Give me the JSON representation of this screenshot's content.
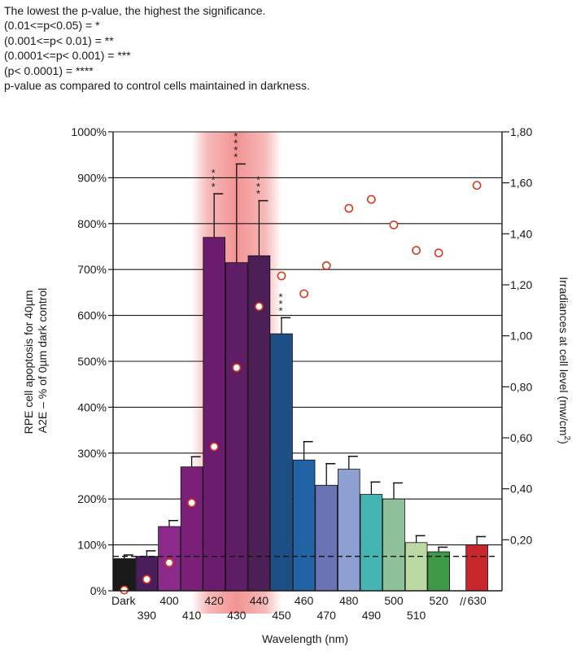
{
  "notes": [
    "The lowest the p-value, the highest the significance.",
    "(0.01<=p<0.05) = *",
    "(0.001<=p< 0.01) = **",
    "(0.0001<=p< 0.001) = ***",
    "(p< 0.0001) = ****",
    "p-value as compared to control cells maintained in darkness."
  ],
  "colors": {
    "highlight": "#f08080",
    "marker": "#d63a1e",
    "bar_edge": "#111111",
    "reference_line": "#111111"
  },
  "chart_data": {
    "type": "bar",
    "xlabel": "Wavelength (nm)",
    "ylabel_left": [
      "RPE cell apoptosis for 40µm",
      "A2E – % of 0µm dark control"
    ],
    "ylabel_right": "Irradiances at cell level (mw/cm",
    "ylabel_right_sup": "2",
    "ylabel_right_suffix": ")",
    "ylim_left": [
      0,
      1000
    ],
    "ylim_right": [
      0,
      1.8
    ],
    "yticks_left": [
      "0%",
      "100%",
      "200%",
      "300%",
      "400%",
      "500%",
      "600%",
      "700%",
      "800%",
      "900%",
      "1000%"
    ],
    "yticks_right": [
      "0,20",
      "0,40",
      "0,60",
      "0,80",
      "1,00",
      "1,20",
      "1,40",
      "1,60",
      "1,80"
    ],
    "break_marker": "//",
    "grid": "horizontal",
    "highlight_band": [
      "420",
      "440"
    ],
    "reference_line_value": 75,
    "categories": [
      "Dark",
      "390",
      "400",
      "410",
      "420",
      "430",
      "440",
      "450",
      "460",
      "470",
      "480",
      "490",
      "500",
      "510",
      "520",
      "630"
    ],
    "label_row": [
      "top",
      "bottom",
      "top",
      "bottom",
      "top",
      "bottom",
      "top",
      "bottom",
      "top",
      "bottom",
      "top",
      "bottom",
      "top",
      "bottom",
      "top",
      "top"
    ],
    "series": [
      {
        "kind": "bar",
        "values": [
          70,
          75,
          140,
          270,
          770,
          715,
          730,
          560,
          285,
          230,
          265,
          210,
          200,
          105,
          85,
          100
        ],
        "errors": [
          8,
          12,
          13,
          22,
          95,
          215,
          120,
          35,
          40,
          47,
          28,
          27,
          35,
          15,
          10,
          18
        ],
        "significance": [
          "",
          "",
          "",
          "",
          "***",
          "****",
          "***",
          "***",
          "",
          "",
          "",
          "",
          "",
          "",
          "",
          ""
        ],
        "colors": [
          "#1a1a1a",
          "#4a1d5c",
          "#8b2a8a",
          "#7b2078",
          "#6b1c6e",
          "#5e1d64",
          "#4c1f55",
          "#1d4e86",
          "#2164a6",
          "#6b74b2",
          "#8e9fd1",
          "#45b5b4",
          "#8fc19b",
          "#bcd9a3",
          "#3e9a47",
          "#c8282b"
        ]
      },
      {
        "kind": "scatter",
        "axis": "right",
        "values": [
          0.003,
          0.045,
          0.11,
          0.345,
          0.565,
          0.875,
          1.115,
          1.235,
          1.165,
          1.275,
          1.5,
          1.535,
          1.435,
          1.335,
          1.325,
          1.59
        ]
      }
    ]
  }
}
